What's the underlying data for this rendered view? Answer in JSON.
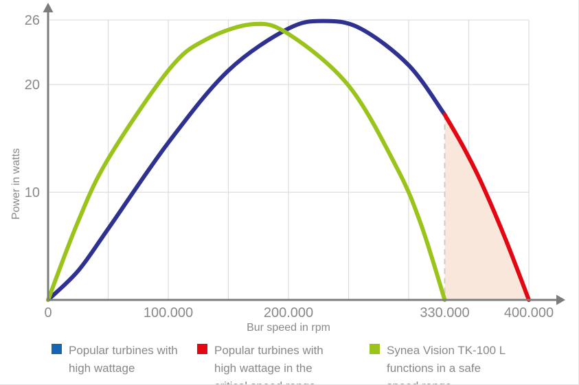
{
  "page": {
    "background": "#ffffff"
  },
  "chart_data": {
    "type": "line",
    "title": "",
    "xlabel": "Bur speed in rpm",
    "ylabel": "Power in watts",
    "xlim": [
      0,
      430000
    ],
    "ylim": [
      0,
      27
    ],
    "grid": {
      "vertical_spacing_rpm": 50000,
      "vertical_max_rpm": 400000,
      "horizontal_at_watts": [
        10,
        20,
        26
      ],
      "color": "#dcdcdc"
    },
    "x_ticks": [
      {
        "value": 0,
        "label": "0"
      },
      {
        "value": 100000,
        "label": "100.000"
      },
      {
        "value": 200000,
        "label": "200.000"
      },
      {
        "value": 330000,
        "label": "330.000"
      },
      {
        "value": 400000,
        "label": "400.000"
      }
    ],
    "y_ticks": [
      {
        "value": 10,
        "label": "10"
      },
      {
        "value": 20,
        "label": "20"
      },
      {
        "value": 26,
        "label": "26"
      }
    ],
    "critical_range": {
      "from_rpm": 330000,
      "to_rpm": 400000,
      "fill_color": "#fae7db",
      "divider_color": "#cbcbcb",
      "divider_style": "dashed"
    },
    "series": [
      {
        "name": "Popular turbines with high wattage",
        "color": "#2e3190",
        "x_rpm": [
          0,
          25000,
          50000,
          100000,
          150000,
          200000,
          230000,
          260000,
          300000,
          330000
        ],
        "y_watts": [
          0,
          2.7,
          6.6,
          14.6,
          21.3,
          25.2,
          25.9,
          25.2,
          21.8,
          17.2
        ]
      },
      {
        "name": "Popular turbines with high wattage in the critical speed range",
        "color": "#e30613",
        "x_rpm": [
          330000,
          345000,
          360000,
          380000,
          400000
        ],
        "y_watts": [
          17.2,
          14.3,
          11.0,
          5.8,
          0
        ],
        "area_fill": "#fae7db"
      },
      {
        "name": "Synea Vision TK-100 L functions in a safe speed range",
        "color": "#9ac31c",
        "x_rpm": [
          0,
          25000,
          50000,
          100000,
          130000,
          170000,
          200000,
          250000,
          290000,
          310000,
          330000
        ],
        "y_watts": [
          0,
          7.3,
          13.1,
          21.3,
          24.1,
          25.6,
          24.7,
          19.9,
          12.3,
          7.1,
          0
        ]
      }
    ],
    "axis_color": "#7b7c7e",
    "text_color": "#87888a",
    "legend_position": "bottom"
  },
  "legend": {
    "items": [
      {
        "swatch_color": "#1565b0",
        "lines": [
          "Popular turbines with",
          "high wattage"
        ]
      },
      {
        "swatch_color": "#e30613",
        "lines": [
          "Popular turbines with",
          "high wattage in the",
          "critical speed range"
        ]
      },
      {
        "swatch_color": "#9ac31c",
        "lines": [
          "Synea Vision TK-100 L",
          "functions in a safe",
          "speed range"
        ]
      }
    ]
  }
}
